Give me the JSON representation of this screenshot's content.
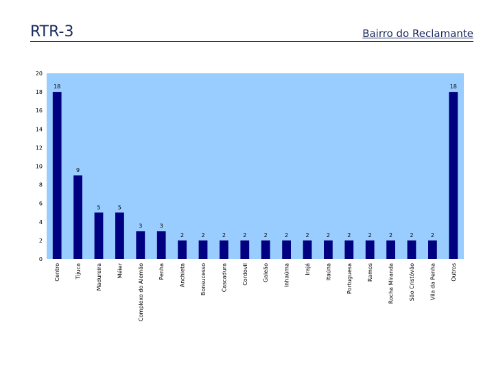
{
  "header": {
    "title": "RTR-3",
    "subtitle": "Bairro do Reclamante"
  },
  "colors": {
    "plot_background": "#99ccff",
    "bar": "#000080",
    "header_text": "#1a2a5e"
  },
  "chart_data": {
    "type": "bar",
    "title": "",
    "xlabel": "",
    "ylabel": "",
    "ylim": [
      0,
      20
    ],
    "yticks": [
      0,
      2,
      4,
      6,
      8,
      10,
      12,
      14,
      16,
      18,
      20
    ],
    "grid": false,
    "legend": "none",
    "categories": [
      "Centro",
      "Tijuca",
      "Madureira",
      "Méier",
      "Complexo do Alemão",
      "Penha",
      "Anchieta",
      "Bonsucesso",
      "Cascadura",
      "Cordovil",
      "Galeão",
      "Inhaúma",
      "Irajá",
      "Itaúna",
      "Portuguesa",
      "Ramos",
      "Rocha Miranda",
      "São Cristóvão",
      "Vila da Penha",
      "Outros"
    ],
    "values": [
      18,
      9,
      5,
      5,
      3,
      3,
      2,
      2,
      2,
      2,
      2,
      2,
      2,
      2,
      2,
      2,
      2,
      2,
      2,
      18
    ]
  }
}
